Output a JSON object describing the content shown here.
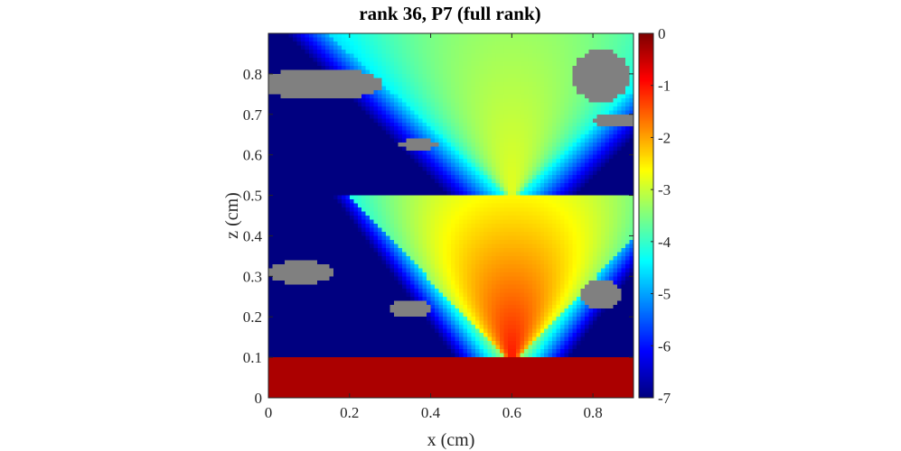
{
  "chart_data": {
    "type": "heatmap",
    "title": "rank 36, P7 (full rank)",
    "xlabel": "x (cm)",
    "ylabel": "z (cm)",
    "xlim": [
      0,
      0.9
    ],
    "ylim": [
      0,
      0.9
    ],
    "xticks": [
      "0",
      "0.2",
      "0.4",
      "0.6",
      "0.8"
    ],
    "yticks": [
      "0",
      "0.1",
      "0.2",
      "0.3",
      "0.4",
      "0.5",
      "0.6",
      "0.7",
      "0.8"
    ],
    "colorbar": {
      "colormap": "jet",
      "clim": [
        -7,
        0
      ],
      "ticks": [
        "0",
        "-1",
        "-2",
        "-3",
        "-4",
        "-5",
        "-6",
        "-7"
      ]
    },
    "grid": false,
    "nan_color": "#808080",
    "grid_size": [
      90,
      90
    ],
    "field_description": {
      "bottom_band": {
        "z": [
          0,
          0.1
        ],
        "value": -0.3
      },
      "source_x": 0.6,
      "lower_fan_apex": [
        0.6,
        0.1
      ],
      "upper_fan_apex": [
        0.6,
        0.5
      ],
      "interface_z": 0.5,
      "upper_edge_value_top": -6.6
    },
    "masked_regions": [
      {
        "cx": 0.13,
        "cz": 0.775,
        "rx": 0.15,
        "rz": 0.04
      },
      {
        "cx": 0.37,
        "cz": 0.625,
        "rx": 0.05,
        "rz": 0.014
      },
      {
        "cx": 0.82,
        "cz": 0.795,
        "rx": 0.07,
        "rz": 0.065
      },
      {
        "cx": 0.86,
        "cz": 0.685,
        "rx": 0.06,
        "rz": 0.018
      },
      {
        "cx": 0.08,
        "cz": 0.31,
        "rx": 0.08,
        "rz": 0.03
      },
      {
        "cx": 0.35,
        "cz": 0.22,
        "rx": 0.05,
        "rz": 0.022
      },
      {
        "cx": 0.82,
        "cz": 0.255,
        "rx": 0.05,
        "rz": 0.035
      }
    ]
  }
}
